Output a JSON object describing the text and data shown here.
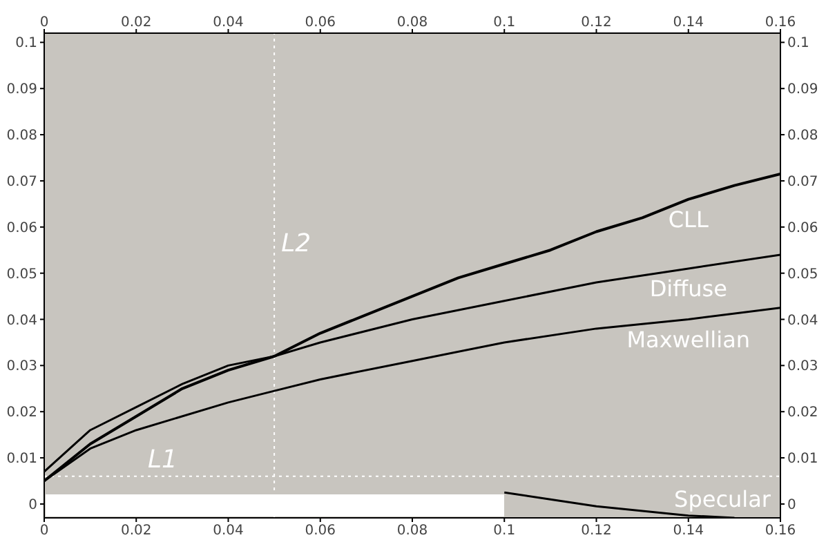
{
  "chart_data": {
    "type": "line",
    "xlim": [
      0,
      0.16
    ],
    "xticks": [
      0,
      0.02,
      0.04,
      0.06,
      0.08,
      0.1,
      0.12,
      0.14,
      0.16
    ],
    "x2lim": [
      0,
      0.16
    ],
    "x2ticks": [
      0,
      0.02,
      0.04,
      0.06,
      0.08,
      0.1,
      0.12,
      0.14,
      0.16
    ],
    "ylim": [
      -0.003,
      0.102
    ],
    "yticks": [
      0,
      0.01,
      0.02,
      0.03,
      0.04,
      0.05,
      0.06,
      0.07,
      0.08,
      0.09,
      0.1
    ],
    "y2lim": [
      -0.003,
      0.102
    ],
    "y2ticks": [
      0,
      0.01,
      0.02,
      0.03,
      0.04,
      0.05,
      0.06,
      0.07,
      0.08,
      0.09,
      0.1
    ],
    "grid": false,
    "marker": "none",
    "line_style": "solid",
    "series": [
      {
        "name": "CLL",
        "color": "#000000",
        "x": [
          0,
          0.01,
          0.02,
          0.03,
          0.04,
          0.05,
          0.06,
          0.07,
          0.08,
          0.09,
          0.1,
          0.11,
          0.12,
          0.13,
          0.14,
          0.15,
          0.16
        ],
        "values": [
          0.005,
          0.013,
          0.019,
          0.025,
          0.029,
          0.032,
          0.037,
          0.041,
          0.045,
          0.049,
          0.052,
          0.055,
          0.059,
          0.062,
          0.066,
          0.069,
          0.0715
        ]
      },
      {
        "name": "Diffuse",
        "color": "#000000",
        "x": [
          0,
          0.01,
          0.02,
          0.03,
          0.04,
          0.05,
          0.06,
          0.08,
          0.1,
          0.12,
          0.14,
          0.16
        ],
        "values": [
          0.007,
          0.016,
          0.021,
          0.026,
          0.03,
          0.032,
          0.035,
          0.04,
          0.044,
          0.048,
          0.051,
          0.054
        ]
      },
      {
        "name": "Maxwellian",
        "color": "#000000",
        "x": [
          0,
          0.01,
          0.02,
          0.04,
          0.05,
          0.06,
          0.08,
          0.1,
          0.12,
          0.14,
          0.16
        ],
        "values": [
          0.005,
          0.012,
          0.016,
          0.022,
          0.0245,
          0.027,
          0.031,
          0.035,
          0.038,
          0.04,
          0.0425
        ]
      },
      {
        "name": "Specular",
        "color": "#000000",
        "x": [
          0.1,
          0.11,
          0.12,
          0.13,
          0.14,
          0.15
        ],
        "values": [
          0.0025,
          0.001,
          -0.0005,
          -0.0015,
          -0.0025,
          -0.003
        ]
      }
    ],
    "ref_lines": [
      {
        "axis": "y",
        "value": 0.006,
        "label": "L1",
        "color": "#ffffff",
        "line_style": "dotted"
      },
      {
        "axis": "x",
        "value": 0.05,
        "label": "L2",
        "color": "#ffffff",
        "line_style": "dotted"
      }
    ]
  }
}
